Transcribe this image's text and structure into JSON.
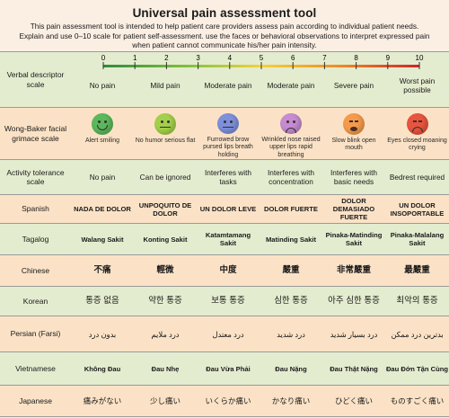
{
  "header": {
    "title": "Universal pain assessment tool",
    "intro_lines": [
      "This pain assessment tool is intended to help patient care providers assess pain according to individual patient needs.",
      "Explain and use 0–10 scale for patient self-assessment. use the faces or behavioral observations to interpret expressed pain",
      "when patient cannot communicate his/her pain intensity."
    ]
  },
  "scale": {
    "ticks": [
      "0",
      "1",
      "2",
      "3",
      "4",
      "5",
      "6",
      "7",
      "8",
      "9",
      "10"
    ]
  },
  "rows": {
    "verbal": {
      "label": "Verbal descriptor scale",
      "cells": [
        "No pain",
        "Mild pain",
        "Moderate pain",
        "Moderate pain",
        "Severe pain",
        "Worst pain possible"
      ]
    },
    "wong": {
      "label": "Wong-Baker facial grimace scale",
      "faces": [
        {
          "icon": "alert-smiling-face-icon",
          "color": "#5cb85c",
          "caption": "Alert smiling"
        },
        {
          "icon": "no-humor-face-icon",
          "color": "#a3cf4a",
          "caption": "No humor serious flat"
        },
        {
          "icon": "furrowed-brow-face-icon",
          "color": "#7e8fdc",
          "caption": "Furrowed brow pursed lips breath holding"
        },
        {
          "icon": "wrinkled-nose-face-icon",
          "color": "#c68bd0",
          "caption": "Wrinkled nose raised upper lips rapid breathing"
        },
        {
          "icon": "slow-blink-face-icon",
          "color": "#f59a4b",
          "caption": "Slow blink open mouth"
        },
        {
          "icon": "eyes-closed-crying-face-icon",
          "color": "#e8543f",
          "caption": "Eyes closed moaning crying"
        }
      ]
    },
    "activity": {
      "label": "Activity tolerance scale",
      "cells": [
        "No pain",
        "Can be ignored",
        "Interferes with tasks",
        "Interferes with concentration",
        "Interferes with basic needs",
        "Bedrest required"
      ]
    },
    "spanish": {
      "label": "Spanish",
      "cells": [
        "NADA DE DOLOR",
        "UNPOQUITO DE DOLOR",
        "UN DOLOR LEVE",
        "DOLOR FUERTE",
        "DOLOR DEMASIADO FUERTE",
        "UN DOLOR INSOPORTABLE"
      ]
    },
    "tagalog": {
      "label": "Tagalog",
      "cells": [
        "Walang Sakit",
        "Konting Sakit",
        "Katamtamang Sakit",
        "Matinding Sakit",
        "Pinaka-Matinding Sakit",
        "Pinaka-Malalang Sakit"
      ]
    },
    "chinese": {
      "label": "Chinese",
      "cells": [
        "不痛",
        "輕微",
        "中度",
        "嚴重",
        "非常嚴重",
        "最嚴重"
      ]
    },
    "korean": {
      "label": "Korean",
      "cells": [
        "통증 없음",
        "약한 통증",
        "보통 통증",
        "심한 통증",
        "아주 심한 통증",
        "최악의 통증"
      ]
    },
    "persian": {
      "label": "Persian (Farsi)",
      "cells": [
        "بدون درد",
        "درد ملايم",
        "درد معتدل",
        "درد شديد",
        "درد بسيار شديد",
        "بدترين درد ممكن"
      ]
    },
    "vietnamese": {
      "label": "Vietnamese",
      "cells": [
        "Không Đau",
        "Đau Nhẹ",
        "Đau Vừa Phải",
        "Đau Nặng",
        "Đau Thật Nặng",
        "Đau Đớn Tận Cùng"
      ]
    },
    "japanese": {
      "label": "Japanese",
      "cells": [
        "痛みがない",
        "少し痛い",
        "いくらか痛い",
        "かなり痛い",
        "ひどく痛い",
        "ものすごく痛い"
      ]
    }
  },
  "colors": {
    "scale_gradient": [
      "#2e8b3a",
      "#8dc63f",
      "#f4d23a",
      "#f08a24",
      "#d2232a"
    ]
  }
}
